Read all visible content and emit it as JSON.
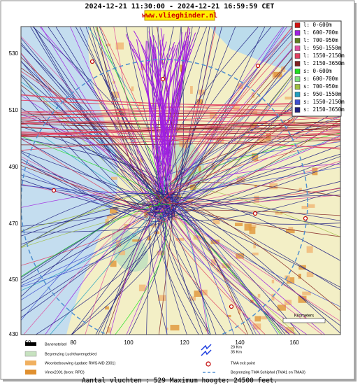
{
  "header": {
    "title": "2024-12-21 11:30:00 - 2024-12-21 16:59:59 CET",
    "url": "www.vlieghinder.nl"
  },
  "legend": [
    {
      "label": "l: 0-600m",
      "color": "#d01010"
    },
    {
      "label": "l: 600-700m",
      "color": "#a020e0"
    },
    {
      "label": "l: 700-950m",
      "color": "#608020"
    },
    {
      "label": "l: 950-1550m",
      "color": "#e050a0"
    },
    {
      "label": "l: 1550-2150m",
      "color": "#e04060"
    },
    {
      "label": "l: 2150-3650m",
      "color": "#802020"
    },
    {
      "label": "s: 0-600m",
      "color": "#20e020"
    },
    {
      "label": "s: 600-700m",
      "color": "#80e080"
    },
    {
      "label": "s: 700-950m",
      "color": "#a0c040"
    },
    {
      "label": "s: 950-1550m",
      "color": "#20a0c0"
    },
    {
      "label": "s: 1550-2150m",
      "color": "#4050d0"
    },
    {
      "label": "s: 2150-3650m",
      "color": "#202080"
    }
  ],
  "axes": {
    "x_ticks": [
      60,
      80,
      100,
      120,
      140,
      160
    ],
    "y_ticks": [
      530,
      510,
      490,
      470,
      450,
      430
    ]
  },
  "scale_label": "Kilometers",
  "key": {
    "runways": "Banenstelsel",
    "airport_boundary": "Begrenzing Luchthavengebied",
    "housing": "Woonbebouwing (update RWS-MD 2001)",
    "vinex": "Vinex2001 (bron: RPD)",
    "range_20": "20 Km",
    "range_35": "35 Km",
    "tma_exit": "TMA exit point",
    "tma_boundary": "Begrenzing TMA Schiphol  (TMA1 en TMA3)"
  },
  "footer": "Aantal vluchten : 529 Maximum hoogte: 24500 feet."
}
